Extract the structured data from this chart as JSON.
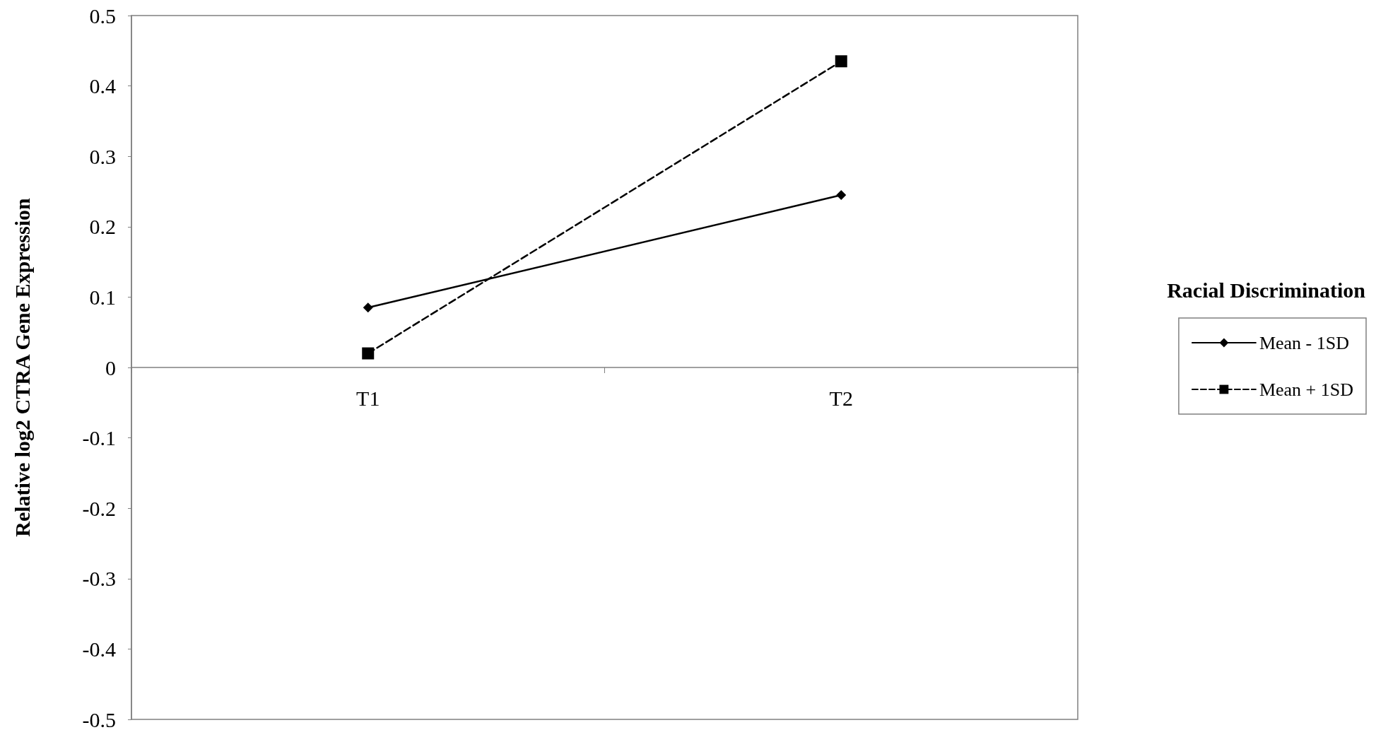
{
  "chart_data": {
    "type": "line",
    "ylabel": "Relative log2 CTRA Gene Expression",
    "legend_title": "Racial Discrimination",
    "categories": [
      "T1",
      "T2"
    ],
    "series": [
      {
        "name": "Mean - 1SD",
        "color": "#000000",
        "values": [
          0.085,
          0.245
        ],
        "marker": "diamond",
        "line_style": "solid"
      },
      {
        "name": "Mean + 1SD",
        "color": "#000000",
        "values": [
          0.02,
          0.435
        ],
        "marker": "square",
        "line_style": "dashed"
      }
    ],
    "ylim": [
      -0.5,
      0.5
    ],
    "yticks": [
      -0.5,
      -0.4,
      -0.3,
      -0.2,
      -0.1,
      0,
      0.1,
      0.2,
      0.3,
      0.4,
      0.5
    ],
    "grid": false,
    "legend": "right"
  }
}
